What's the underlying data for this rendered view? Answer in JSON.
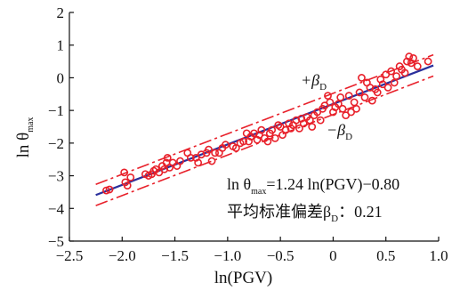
{
  "chart_data": {
    "type": "scatter",
    "xlabel": "ln(PGV)",
    "ylabel": {
      "main": "ln θ",
      "sub": "max"
    },
    "xlim": [
      -2.5,
      1.0
    ],
    "ylim": [
      -5,
      2
    ],
    "xticks": [
      -2.5,
      -2.0,
      -1.5,
      -1.0,
      -0.5,
      0,
      0.5,
      1.0
    ],
    "xtick_labels": [
      "−2.5",
      "−2.0",
      "−1.5",
      "−1.0",
      "−0.5",
      "0",
      "0.5",
      "1.0"
    ],
    "yticks": [
      2,
      1,
      0,
      -1,
      -2,
      -3,
      -4,
      -5
    ],
    "ytick_labels": [
      "2",
      "1",
      "0",
      "−1",
      "−2",
      "−3",
      "−4",
      "−5"
    ],
    "grid": false,
    "colors": {
      "points": "#e8202a",
      "fit": "#2a2f9c",
      "band": "#e8202a"
    },
    "fit": {
      "slope": 1.24,
      "intercept": -0.8
    },
    "band_offset": 0.21,
    "band_labels": {
      "plus": "+β",
      "minus": "−β",
      "sub": "D"
    },
    "equation": {
      "lead": "ln θ",
      "sub": "max",
      "rest": "=1.24 ln(PGV)−0.80"
    },
    "sigma_label": {
      "lead": "平均标准偏差β",
      "sub": "D",
      "rest": "：0.21"
    },
    "points": [
      [
        -2.15,
        -3.45
      ],
      [
        -2.12,
        -3.42
      ],
      [
        -1.98,
        -2.9
      ],
      [
        -1.97,
        -3.2
      ],
      [
        -1.95,
        -3.3
      ],
      [
        -1.92,
        -3.05
      ],
      [
        -1.78,
        -2.95
      ],
      [
        -1.75,
        -3.0
      ],
      [
        -1.72,
        -2.95
      ],
      [
        -1.7,
        -2.85
      ],
      [
        -1.68,
        -2.8
      ],
      [
        -1.65,
        -2.9
      ],
      [
        -1.62,
        -2.7
      ],
      [
        -1.6,
        -2.8
      ],
      [
        -1.58,
        -2.6
      ],
      [
        -1.57,
        -2.45
      ],
      [
        -1.55,
        -2.75
      ],
      [
        -1.52,
        -2.6
      ],
      [
        -1.48,
        -2.7
      ],
      [
        -1.45,
        -2.55
      ],
      [
        -1.38,
        -2.3
      ],
      [
        -1.35,
        -2.45
      ],
      [
        -1.3,
        -2.45
      ],
      [
        -1.28,
        -2.6
      ],
      [
        -1.25,
        -2.35
      ],
      [
        -1.2,
        -2.3
      ],
      [
        -1.18,
        -2.2
      ],
      [
        -1.15,
        -2.55
      ],
      [
        -1.12,
        -2.3
      ],
      [
        -1.08,
        -2.3
      ],
      [
        -1.05,
        -2.15
      ],
      [
        -1.02,
        -2.05
      ],
      [
        -0.95,
        -2.1
      ],
      [
        -0.92,
        -2.15
      ],
      [
        -0.88,
        -2.0
      ],
      [
        -0.85,
        -1.95
      ],
      [
        -0.82,
        -1.7
      ],
      [
        -0.8,
        -1.95
      ],
      [
        -0.78,
        -1.8
      ],
      [
        -0.75,
        -1.7
      ],
      [
        -0.72,
        -1.9
      ],
      [
        -0.7,
        -1.75
      ],
      [
        -0.68,
        -1.6
      ],
      [
        -0.65,
        -1.85
      ],
      [
        -0.62,
        -1.95
      ],
      [
        -0.6,
        -1.7
      ],
      [
        -0.58,
        -1.6
      ],
      [
        -0.55,
        -1.85
      ],
      [
        -0.52,
        -1.45
      ],
      [
        -0.5,
        -1.5
      ],
      [
        -0.48,
        -1.75
      ],
      [
        -0.45,
        -1.6
      ],
      [
        -0.42,
        -1.4
      ],
      [
        -0.4,
        -1.55
      ],
      [
        -0.38,
        -1.45
      ],
      [
        -0.35,
        -1.3
      ],
      [
        -0.32,
        -1.55
      ],
      [
        -0.3,
        -1.25
      ],
      [
        -0.28,
        -1.4
      ],
      [
        -0.25,
        -1.2
      ],
      [
        -0.22,
        -1.3
      ],
      [
        -0.2,
        -1.5
      ],
      [
        -0.18,
        -1.15
      ],
      [
        -0.15,
        -1.05
      ],
      [
        -0.12,
        -1.3
      ],
      [
        -0.1,
        -0.95
      ],
      [
        -0.08,
        -0.85
      ],
      [
        -0.05,
        -0.55
      ],
      [
        -0.03,
        -0.75
      ],
      [
        0.0,
        -1.05
      ],
      [
        0.02,
        -0.9
      ],
      [
        0.05,
        -0.8
      ],
      [
        0.07,
        -0.6
      ],
      [
        0.09,
        -0.95
      ],
      [
        0.12,
        -1.15
      ],
      [
        0.15,
        -0.55
      ],
      [
        0.17,
        -1.05
      ],
      [
        0.2,
        -0.75
      ],
      [
        0.22,
        -0.95
      ],
      [
        0.25,
        -0.45
      ],
      [
        0.27,
        0.0
      ],
      [
        0.3,
        -0.6
      ],
      [
        0.32,
        -0.15
      ],
      [
        0.35,
        -0.3
      ],
      [
        0.37,
        -0.7
      ],
      [
        0.4,
        -0.35
      ],
      [
        0.42,
        -0.45
      ],
      [
        0.45,
        -0.05
      ],
      [
        0.47,
        -0.2
      ],
      [
        0.5,
        0.1
      ],
      [
        0.52,
        -0.3
      ],
      [
        0.55,
        0.2
      ],
      [
        0.58,
        -0.15
      ],
      [
        0.6,
        0.05
      ],
      [
        0.63,
        0.35
      ],
      [
        0.65,
        0.25
      ],
      [
        0.68,
        0.15
      ],
      [
        0.7,
        0.5
      ],
      [
        0.72,
        0.65
      ],
      [
        0.74,
        0.45
      ],
      [
        0.76,
        0.6
      ],
      [
        0.8,
        0.35
      ],
      [
        0.9,
        0.5
      ]
    ]
  }
}
